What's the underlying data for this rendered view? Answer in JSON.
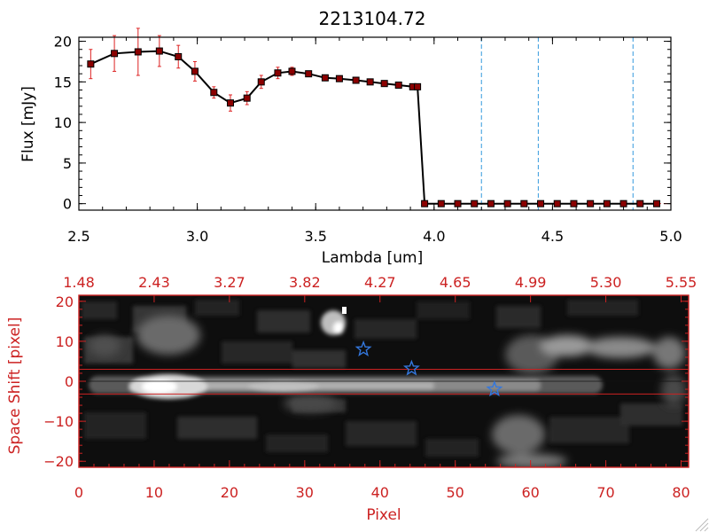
{
  "chart_data": [
    {
      "type": "line",
      "title": "2213104.72",
      "xlabel": "Lambda [um]",
      "ylabel": "Flux [mJy]",
      "xlim": [
        2.5,
        5.0
      ],
      "ylim": [
        -0.8,
        20.5
      ],
      "xticks": [
        2.5,
        3.0,
        3.5,
        4.0,
        4.5,
        5.0
      ],
      "xtick_labels": [
        "2.5",
        "3.0",
        "3.5",
        "4.0",
        "4.5",
        "5.0"
      ],
      "yticks": [
        0,
        5,
        10,
        15,
        20
      ],
      "ytick_labels": [
        "0",
        "5",
        "10",
        "15",
        "20"
      ],
      "series": [
        {
          "name": "flux",
          "color": "#000000",
          "marker_color": "#8b0000",
          "errorbar_color": "#dd2222",
          "x": [
            2.55,
            2.65,
            2.75,
            2.84,
            2.92,
            2.99,
            3.07,
            3.14,
            3.21,
            3.27,
            3.34,
            3.4,
            3.47,
            3.54,
            3.6,
            3.67,
            3.73,
            3.79,
            3.85,
            3.91,
            3.93,
            3.96,
            4.03,
            4.1,
            4.17,
            4.24,
            4.31,
            4.38,
            4.45,
            4.52,
            4.59,
            4.66,
            4.73,
            4.8,
            4.87,
            4.94
          ],
          "y": [
            17.2,
            18.5,
            18.7,
            18.8,
            18.1,
            16.3,
            13.7,
            12.4,
            13.0,
            15.0,
            16.1,
            16.3,
            16.0,
            15.5,
            15.4,
            15.2,
            15.0,
            14.8,
            14.6,
            14.4,
            14.4,
            0,
            0,
            0,
            0,
            0,
            0,
            0,
            0,
            0,
            0,
            0,
            0,
            0,
            0,
            0
          ],
          "err": [
            1.8,
            2.2,
            2.9,
            1.9,
            1.4,
            1.2,
            0.7,
            1.0,
            0.8,
            0.8,
            0.7,
            0.5,
            0,
            0,
            0,
            0,
            0,
            0,
            0,
            0,
            0,
            0,
            0,
            0,
            0,
            0,
            0,
            0,
            0,
            0,
            0,
            0,
            0,
            0,
            0,
            0
          ]
        }
      ],
      "vlines": [
        4.2,
        4.44,
        4.84
      ],
      "vline_color": "#3399dd"
    },
    {
      "type": "heatmap",
      "xlabel": "Pixel",
      "ylabel": "Space Shift [pixel]",
      "xlim": [
        0,
        81
      ],
      "ylim": [
        -21.5,
        21.5
      ],
      "xticks": [
        0,
        10,
        20,
        30,
        40,
        50,
        60,
        70,
        80
      ],
      "xtick_labels": [
        "0",
        "10",
        "20",
        "30",
        "40",
        "50",
        "60",
        "70",
        "80"
      ],
      "yticks": [
        -20,
        -10,
        0,
        10,
        20
      ],
      "ytick_labels": [
        "−20",
        "−10",
        "0",
        "10",
        "20"
      ],
      "top_axis": {
        "positions": [
          0,
          10,
          20,
          30,
          40,
          50,
          60,
          70,
          80
        ],
        "labels": [
          "1.48",
          "2.43",
          "3.27",
          "3.82",
          "4.27",
          "4.65",
          "4.99",
          "5.30",
          "5.55"
        ]
      },
      "axis_color": "#cc2222",
      "trace_band_y": [
        3.0,
        -3.2
      ],
      "trace_center_y": 0.0,
      "star_markers": [
        {
          "x": 37.8,
          "y": 8.0
        },
        {
          "x": 44.2,
          "y": 3.2
        },
        {
          "x": 55.2,
          "y": -2.0
        }
      ],
      "star_color": "#3377dd"
    }
  ]
}
